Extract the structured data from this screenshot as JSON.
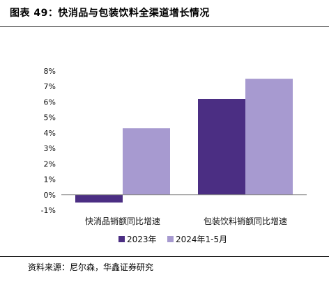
{
  "title": "图表 49：快消品与包装饮料全渠道增长情况",
  "source": "资料来源：尼尔森，华鑫证券研究",
  "chart_data": {
    "type": "bar",
    "categories": [
      "快消品销额同比增速",
      "包装饮料销额同比增速"
    ],
    "series": [
      {
        "name": "2023年",
        "values": [
          -0.5,
          6.2
        ],
        "color": "#4b2e83"
      },
      {
        "name": "2024年1-5月",
        "values": [
          4.3,
          7.5
        ],
        "color": "#a79ad0"
      }
    ],
    "ylim": [
      -1,
      8
    ],
    "yticks": [
      "8%",
      "7%",
      "6%",
      "5%",
      "4%",
      "3%",
      "2%",
      "1%",
      "0%",
      "-1%"
    ],
    "ytick_values": [
      8,
      7,
      6,
      5,
      4,
      3,
      2,
      1,
      0,
      -1
    ],
    "legend_position": "bottom",
    "grid": false
  }
}
